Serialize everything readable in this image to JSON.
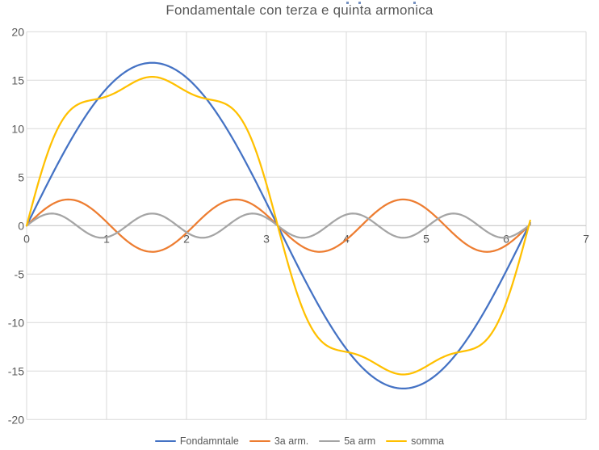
{
  "chart": {
    "title": "Fondamentale con terza e quinta armonica"
  },
  "chart_data": {
    "type": "line",
    "title": "Fondamentale con terza e quinta armonica",
    "xlim": [
      0,
      7
    ],
    "ylim": [
      -20,
      20
    ],
    "x_ticks": [
      0,
      1,
      2,
      3,
      4,
      5,
      6,
      7
    ],
    "y_ticks": [
      -20,
      -15,
      -10,
      -5,
      0,
      5,
      10,
      15,
      20
    ],
    "x_start": 0,
    "x_end": 6.3,
    "x_step": 0.02,
    "grid": true,
    "legend_position": "bottom",
    "series": [
      {
        "name": "Fondamntale",
        "color": "#4472C4",
        "amplitude": 16.8,
        "harmonic": 1,
        "formula": "y = 16.8*sin(x)"
      },
      {
        "name": "3a arm.",
        "color": "#ED7D31",
        "amplitude": 2.7,
        "harmonic": 3,
        "formula": "y = 2.7*sin(3x)"
      },
      {
        "name": "5a arm",
        "color": "#A5A5A5",
        "amplitude": 1.25,
        "harmonic": 5,
        "formula": "y = 1.25*sin(5x)"
      },
      {
        "name": "somma",
        "color": "#FFC000",
        "sum_of": [
          0,
          1,
          2
        ],
        "formula": "sum of fundamental + 3rd + 5th harmonic"
      }
    ],
    "key_values": {
      "fondamentale_peak": 16.8,
      "terza_armonica_peak": 2.7,
      "quinta_armonica_peak": 1.25,
      "somma_center_peak": 15.35,
      "somma_shoulder_level": 12.6,
      "all_curves_zero_at": [
        0,
        3.1416,
        6.2832
      ]
    }
  },
  "colors": {
    "background": "#FFFFFF",
    "title_text": "#595959",
    "tick_text": "#595959",
    "legend_text": "#595959",
    "gridline": "#D9D9D9",
    "axis_line": "#BFBFBF"
  },
  "artifacts": {
    "selection_dots": {
      "color": "#7591C1",
      "positions": [
        [
          429,
          2
        ],
        [
          444,
          2
        ],
        [
          512,
          2
        ]
      ]
    }
  }
}
